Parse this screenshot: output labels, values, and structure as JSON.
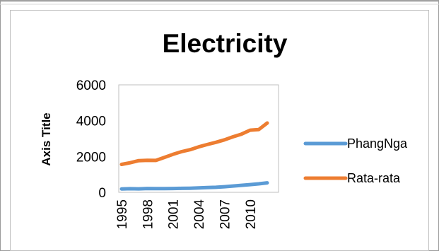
{
  "chart_data": {
    "type": "line",
    "title": "Electricity",
    "xlabel": "",
    "ylabel": "Axis Title",
    "ylim": [
      0,
      6000
    ],
    "yticks": [
      "0",
      "2000",
      "4000",
      "6000"
    ],
    "x": [
      1995,
      1996,
      1997,
      1998,
      1999,
      2000,
      2001,
      2002,
      2003,
      2004,
      2005,
      2006,
      2007,
      2008,
      2009,
      2010,
      2011,
      2012
    ],
    "xtick_labels": [
      "1995",
      "1998",
      "2001",
      "2004",
      "2007",
      "2010"
    ],
    "grid": false,
    "legend_position": "right",
    "series": [
      {
        "name": "PhangNga",
        "color": "#5B9BD5",
        "values": [
          190,
          200,
          195,
          215,
          205,
          210,
          215,
          220,
          230,
          245,
          265,
          280,
          310,
          350,
          390,
          430,
          475,
          530
        ]
      },
      {
        "name": "Rata-rata",
        "color": "#ED7D31",
        "values": [
          1560,
          1650,
          1770,
          1790,
          1780,
          1950,
          2120,
          2270,
          2380,
          2540,
          2670,
          2790,
          2930,
          3100,
          3250,
          3470,
          3500,
          3870
        ]
      }
    ]
  }
}
